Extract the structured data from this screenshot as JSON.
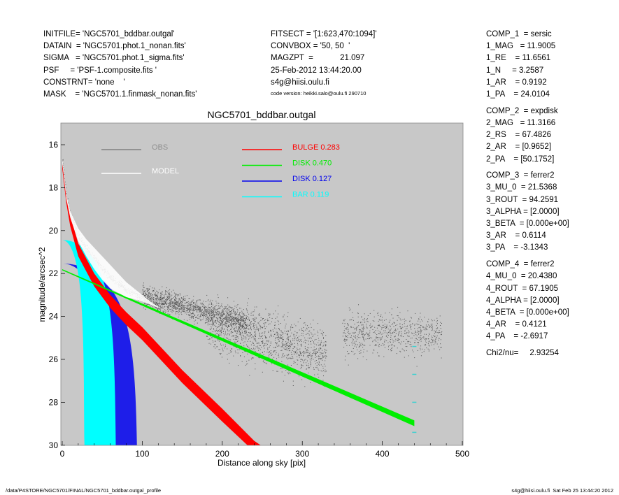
{
  "header_left": [
    "INITFILE= 'NGC5701_bddbar.outgal'",
    "DATAIN  = 'NGC5701.phot.1_nonan.fits'",
    "SIGMA   = 'NGC5701.phot.1_sigma.fits'",
    "PSF     = 'PSF-1.composite.fits '",
    "CONSTRNT= 'none    '",
    "MASK    = 'NGC5701.1.finmask_nonan.fits'"
  ],
  "header_mid": [
    "FITSECT = '[1:623,470:1094]'",
    "CONVBOX = '50, 50  '",
    "MAGZPT  =            21.097",
    "25-Feb-2012 13:44:20.00",
    "s4g@hiisi.oulu.fi"
  ],
  "code_version": "code version: heikki.salo@oulu.fi 290710",
  "params": [
    [
      "COMP_1  = sersic",
      "1_MAG   = 11.9005",
      "1_RE    = 11.6561",
      "1_N     = 3.2587",
      "1_AR    = 0.9192",
      "1_PA    = 24.0104"
    ],
    [
      "COMP_2  = expdisk",
      "2_MAG   = 11.3166",
      "2_RS    = 67.4826",
      "2_AR    = [0.9652]",
      "2_PA    = [50.1752]"
    ],
    [
      "COMP_3  = ferrer2",
      "3_MU_0  = 21.5368",
      "3_ROUT  = 94.2591",
      "3_ALPHA = [2.0000]",
      "3_BETA  = [0.000e+00]",
      "3_AR    = 0.6114",
      "3_PA    = -3.1343"
    ],
    [
      "COMP_4  = ferrer2",
      "4_MU_0  = 20.4380",
      "4_ROUT  = 67.1905",
      "4_ALPHA = [2.0000]",
      "4_BETA  = [0.000e+00]",
      "4_AR    = 0.4121",
      "4_PA    = -2.6917"
    ],
    [
      "Chi2/nu=     2.93254"
    ]
  ],
  "footer_left": "/data/P4STORE/NGC5701/FINAL/NGC5701_bddbar.outgal_profile",
  "footer_right": "s4g@hiisi.oulu.fi  Sat Feb 25 13:44:20 2012",
  "chart_data": {
    "type": "scatter",
    "title": "NGC5701_bddbar.outgal",
    "xlabel": "Distance along sky [pix]",
    "ylabel": "magnitude/arcsec^2",
    "xlim": [
      0,
      500
    ],
    "ylim": [
      30,
      15
    ],
    "xticks": [
      "0",
      "100",
      "200",
      "300",
      "400",
      "500"
    ],
    "yticks": [
      "16",
      "18",
      "20",
      "22",
      "24",
      "26",
      "28",
      "30"
    ],
    "grid": false,
    "legend_left": [
      {
        "label": "OBS",
        "color": "#808080"
      },
      {
        "label": "MODEL",
        "color": "#ffffff"
      }
    ],
    "legend_right": [
      {
        "label": "BULGE  0.283",
        "color": "#ff0000"
      },
      {
        "label": "DISK  0.470",
        "color": "#00ee00"
      },
      {
        "label": "DISK  0.127",
        "color": "#0000ee"
      },
      {
        "label": "BAR  0.119",
        "color": "#00ffff"
      }
    ],
    "bulge_band": [
      [
        0,
        16.9,
        17.1
      ],
      [
        5,
        18.3,
        18.7
      ],
      [
        10,
        19.3,
        19.8
      ],
      [
        20,
        20.6,
        21.2
      ],
      [
        40,
        22.0,
        22.6
      ],
      [
        60,
        23.0,
        23.6
      ],
      [
        80,
        23.8,
        24.4
      ],
      [
        100,
        24.5,
        25.1
      ],
      [
        150,
        26.5,
        27.1
      ],
      [
        200,
        28.3,
        28.9
      ],
      [
        240,
        29.8,
        30.4
      ],
      [
        260,
        30.5,
        31
      ]
    ],
    "disk_band": [
      [
        0,
        21.8,
        21.85
      ],
      [
        440,
        28.84,
        29.11
      ]
    ],
    "ferrer_components": [
      {
        "name": "disk2",
        "mu0": 21.5368,
        "rout": 94.2591,
        "rin": 57.6,
        "color": "#0000ee"
      },
      {
        "name": "bar",
        "mu0": 20.438,
        "rout": 67.1905,
        "rin": 27.7,
        "color": "#00ffff"
      }
    ],
    "model_band": [
      [
        0,
        16.6,
        16.8
      ],
      [
        5,
        18.3,
        18.5
      ],
      [
        10,
        19.1,
        19.4
      ],
      [
        20,
        19.9,
        20.5
      ],
      [
        30,
        20.4,
        21.2
      ],
      [
        40,
        20.8,
        21.8
      ],
      [
        50,
        21.2,
        22.3
      ],
      [
        60,
        21.6,
        22.7
      ],
      [
        70,
        22.0,
        22.9
      ],
      [
        80,
        22.4,
        23.1
      ],
      [
        90,
        22.7,
        23.2
      ],
      [
        100,
        23.0,
        23.3
      ],
      [
        110,
        23.3,
        23.45
      ],
      [
        120,
        23.55,
        23.6
      ]
    ],
    "obs_clouds": [
      {
        "r": [
          0,
          120
        ],
        "follows": "model",
        "spread": 0.25,
        "n": 500
      },
      {
        "r": [
          100,
          230
        ],
        "mag_start": 23.0,
        "mag_end": 24.3,
        "spread": 0.35,
        "n": 1400
      },
      {
        "r": [
          180,
          330
        ],
        "mag_start": 24.3,
        "mag_end": 25.8,
        "spread": 0.9,
        "n": 1300
      },
      {
        "r": [
          350,
          475
        ],
        "mag_start": 24.8,
        "mag_end": 24.8,
        "spread": 0.7,
        "n": 700
      }
    ],
    "sigma_marks": {
      "r": 440,
      "mags": [
        25.4,
        26.7,
        28.0,
        29.4
      ],
      "color": "#40d0d0"
    }
  }
}
